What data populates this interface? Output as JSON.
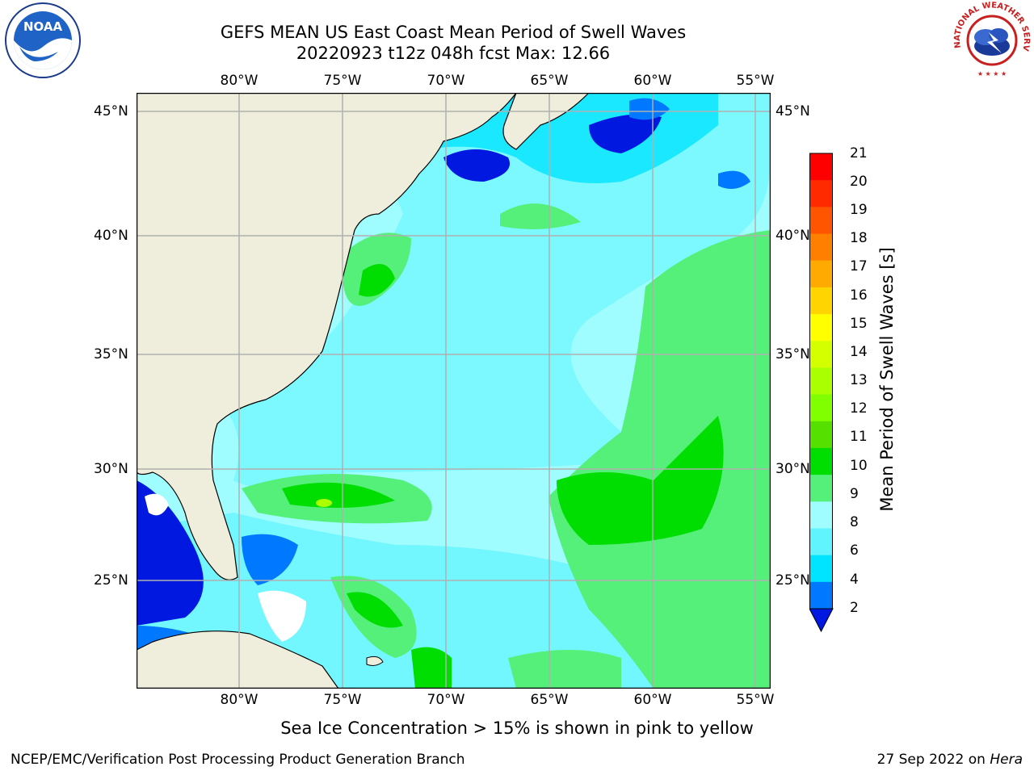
{
  "title": {
    "line1": "GEFS MEAN US East Coast Mean Period of Swell Waves",
    "line2": "20220923 t12z 048h fcst   Max: 12.66"
  },
  "map": {
    "longitude_labels": [
      "80°W",
      "75°W",
      "70°W",
      "65°W",
      "60°W",
      "55°W"
    ],
    "latitude_labels": [
      "45°N",
      "40°N",
      "35°N",
      "30°N",
      "25°N"
    ],
    "land_color": "#efeedc",
    "grid_color": "#b0b0b0"
  },
  "colorbar": {
    "label": "Mean Period of Swell Waves [s]",
    "ticks": [
      "21",
      "20",
      "19",
      "18",
      "17",
      "16",
      "15",
      "14",
      "13",
      "12",
      "11",
      "10",
      "9",
      "8",
      "6",
      "4",
      "2"
    ],
    "colors": [
      "#ff0000",
      "#ff2a00",
      "#ff5500",
      "#ff7f00",
      "#ffaa00",
      "#ffd400",
      "#ffff00",
      "#d4ff00",
      "#aaff00",
      "#7fff00",
      "#55e000",
      "#00dd00",
      "#55f07a",
      "#9ffcff",
      "#5ff4ff",
      "#00e4ff",
      "#0078ff",
      "#0018e0"
    ]
  },
  "note": "Sea Ice Concentration > 15% is shown in pink to yellow",
  "footer": {
    "left": "NCEP/EMC/Verification Post Processing Product Generation Branch",
    "date": "27 Sep 2022 on",
    "machine": "Hera"
  },
  "logos": {
    "noaa_text": "NOAA",
    "nws_text": "NATIONAL WEATHER SERVICE"
  }
}
